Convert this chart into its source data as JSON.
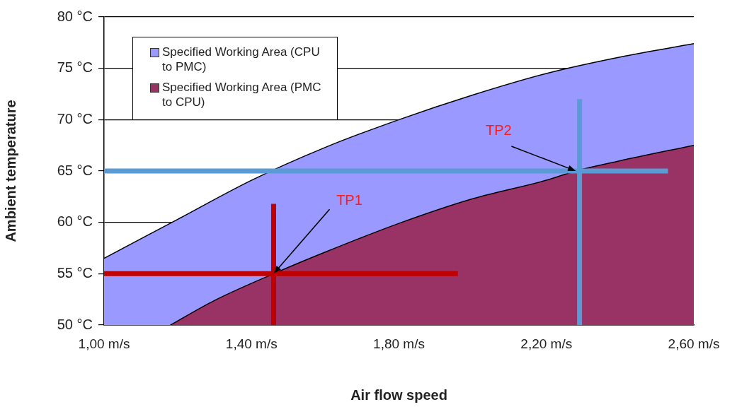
{
  "chart_data": {
    "type": "area",
    "xlabel": "Air flow speed",
    "ylabel": "Ambient temperature",
    "xlim": [
      1.0,
      2.6
    ],
    "ylim": [
      50,
      80
    ],
    "xticks": [
      {
        "value": 1.0,
        "label": "1,00 m/s"
      },
      {
        "value": 1.4,
        "label": "1,40 m/s"
      },
      {
        "value": 1.8,
        "label": "1,80 m/s"
      },
      {
        "value": 2.2,
        "label": "2,20 m/s"
      },
      {
        "value": 2.6,
        "label": "2,60 m/s"
      }
    ],
    "yticks": [
      {
        "value": 50,
        "label": "50 °C"
      },
      {
        "value": 55,
        "label": "55 °C"
      },
      {
        "value": 60,
        "label": "60 °C"
      },
      {
        "value": 65,
        "label": "65 °C"
      },
      {
        "value": 70,
        "label": "70 °C"
      },
      {
        "value": 75,
        "label": "75 °C"
      },
      {
        "value": 80,
        "label": "80 °C"
      }
    ],
    "grid": "y",
    "legend": "top left",
    "marker": "none",
    "line_style": "solid",
    "series": [
      {
        "name": "Specified Working Area (CPU to PMC)",
        "color": "#9999ff",
        "x": [
          1.0,
          1.2,
          1.4,
          1.6,
          1.8,
          2.0,
          2.2,
          2.4,
          2.6
        ],
        "values": [
          56.5,
          60.3,
          64.1,
          67.3,
          70.0,
          72.4,
          74.5,
          76.1,
          77.4
        ]
      },
      {
        "name": "Specified Working Area (PMC to CPU)",
        "color": "#993366",
        "x": [
          1.18,
          1.3,
          1.46,
          1.6,
          1.8,
          2.0,
          2.2,
          2.28,
          2.4,
          2.6
        ],
        "values": [
          50,
          52.4,
          55,
          57.1,
          59.9,
          62.3,
          64.1,
          65,
          66.0,
          67.5
        ]
      },
      {
        "type": "line",
        "color": "#c00000",
        "x": [
          1.0,
          1.96
        ],
        "values": [
          55,
          55
        ]
      },
      {
        "type": "line",
        "color": "#c00000",
        "x": [
          1.46,
          1.46
        ],
        "values": [
          50,
          61.8
        ]
      },
      {
        "type": "line",
        "color": "#5b9bd5",
        "x": [
          1.0,
          2.53
        ],
        "values": [
          65,
          65
        ]
      },
      {
        "type": "line",
        "color": "#5b9bd5",
        "x": [
          2.29,
          2.29
        ],
        "values": [
          50,
          72
        ]
      }
    ],
    "annotations": [
      {
        "text": "TP1",
        "x": 1.46,
        "y": 55
      },
      {
        "text": "TP2",
        "x": 2.28,
        "y": 65
      }
    ]
  }
}
